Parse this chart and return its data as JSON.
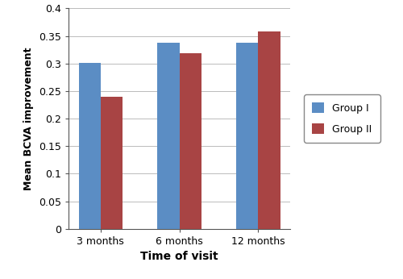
{
  "categories": [
    "3 months",
    "6 months",
    "12 months"
  ],
  "group1_values": [
    0.301,
    0.338,
    0.338
  ],
  "group2_values": [
    0.239,
    0.319,
    0.358
  ],
  "group1_color": "#5B8DC4",
  "group2_color": "#A84444",
  "group1_label": "Group I",
  "group2_label": "Group II",
  "xlabel": "Time of visit",
  "ylabel": "Mean BCVA improvement",
  "ylim": [
    0,
    0.4
  ],
  "yticks": [
    0,
    0.05,
    0.1,
    0.15,
    0.2,
    0.25,
    0.3,
    0.35,
    0.4
  ],
  "ytick_labels": [
    "0",
    "0.05",
    "0.1",
    "0.15",
    "0.2",
    "0.25",
    "0.3",
    "0.35",
    "0.4"
  ],
  "bar_width": 0.28,
  "grid_color": "#bbbbbb",
  "background_color": "#ffffff",
  "figure_facecolor": "#ffffff"
}
